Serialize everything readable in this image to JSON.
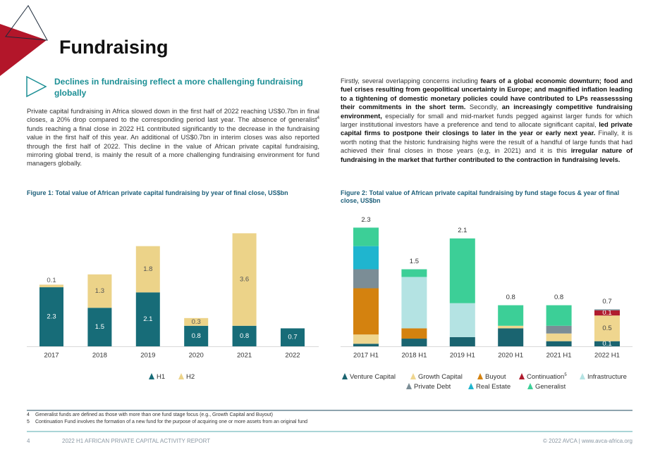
{
  "header": {
    "title": "Fundraising"
  },
  "section": {
    "heading": "Declines in fundraising reflect a more challenging fundraising globally",
    "left_paragraph": [
      {
        "text": "Private capital fundraising in Africa slowed down in the first half of 2022 reaching US$0.7bn in final closes, a 20% drop compared to the corresponding period last year. The absence of generalist",
        "style": "normal"
      },
      {
        "text": "4",
        "style": "sup"
      },
      {
        "text": " funds reaching a final close in 2022 H1 contributed significantly to the decrease in the fundraising value in the first half of this year. An additional of US$0.7bn in interim closes was also reported through the first half of 2022. This decline in the value of African private capital fundraising, mirroring global trend, is mainly the result of a more challenging fundraising environment for fund managers globally.",
        "style": "normal"
      }
    ],
    "right_paragraph": [
      {
        "text": "Firstly, several overlapping concerns including ",
        "style": "normal"
      },
      {
        "text": "fears of a global economic downturn; food and fuel crises resulting from geopolitical uncertainty in Europe; and magnified inflation leading to a tightening of domestic monetary policies could have contributed to LPs reassesssing their commitments in the short term.",
        "style": "bold"
      },
      {
        "text": " Secondly, ",
        "style": "normal"
      },
      {
        "text": "an increasingly competitive fundraising environment,",
        "style": "bold"
      },
      {
        "text": " especially for small and mid-market funds pegged against larger funds for which larger institutional investors have a preference and tend to allocate significant capital, ",
        "style": "normal"
      },
      {
        "text": "led private capital firms to postpone their closings to later in the year or early next year.",
        "style": "bold"
      },
      {
        "text": " Finally, it is worth noting that the historic fundraising highs were the result of a handful of large funds that had achieved their final closes in those years (e.g, in 2021) and it is this ",
        "style": "normal"
      },
      {
        "text": "irregular nature of fundraising in the market that further contributed to the contraction in fundraising levels.",
        "style": "bold"
      }
    ]
  },
  "chart_data": [
    {
      "type": "stacked_bar",
      "title": "Figure 1: Total value of African private capital fundraising by year of final close, US$bn",
      "categories": [
        "2017",
        "2018",
        "2019",
        "2020",
        "2021",
        "2022"
      ],
      "data_labels": true,
      "series": [
        {
          "name": "H1",
          "color": "#176c78",
          "label_color": "#ffffff",
          "values": [
            2.3,
            1.5,
            2.1,
            0.8,
            0.8,
            0.7
          ]
        },
        {
          "name": "H2",
          "color": "#ecd389",
          "label_color": "#555555",
          "values": [
            0.1,
            1.3,
            1.8,
            0.3,
            3.6,
            null
          ]
        }
      ],
      "legend": "bottom"
    },
    {
      "type": "stacked_bar",
      "title": "Figure 2: Total value of African private capital fundraising by fund stage focus & year of final close, US$bn",
      "categories": [
        "2017 H1",
        "2018 H1",
        "2019 H1",
        "2020 H1",
        "2021 H1",
        "2022 H1"
      ],
      "totals": [
        2.3,
        1.5,
        2.1,
        0.8,
        0.8,
        0.7
      ],
      "series": [
        {
          "name": "Venture Capital",
          "color": "#1a6470",
          "label_color": "#ffffff",
          "values": [
            0.05,
            0.15,
            0.18,
            0.35,
            0.1,
            0.1
          ],
          "value_labels": [
            null,
            null,
            null,
            null,
            null,
            "0.1"
          ]
        },
        {
          "name": "Growth Capital",
          "color": "#efd68f",
          "label_color": "#444444",
          "values": [
            0.18,
            null,
            null,
            0.05,
            0.15,
            0.5
          ],
          "value_labels": [
            null,
            null,
            null,
            null,
            null,
            "0.5"
          ]
        },
        {
          "name": "Buyout",
          "color": "#d4820f",
          "label_color": "#ffffff",
          "values": [
            0.9,
            0.2,
            null,
            null,
            null,
            null
          ]
        },
        {
          "name": "Continuation",
          "note": "5",
          "color": "#b01c2e",
          "label_color": "#ffffff",
          "values": [
            null,
            null,
            null,
            null,
            null,
            0.1
          ],
          "value_labels": [
            null,
            null,
            null,
            null,
            null,
            "0.1"
          ]
        },
        {
          "name": "Private Debt",
          "color": "#7b8d96",
          "label_color": "#ffffff",
          "values": [
            0.37,
            null,
            null,
            null,
            0.15,
            0.02
          ]
        },
        {
          "name": "Real Estate",
          "color": "#1fb5cf",
          "label_color": "#ffffff",
          "values": [
            0.45,
            null,
            null,
            null,
            null,
            null
          ]
        },
        {
          "name": "Infrastructure",
          "color": "#b4e3e3",
          "label_color": "#444444",
          "values": [
            null,
            1.0,
            0.66,
            null,
            null,
            null
          ]
        },
        {
          "name": "Generalist",
          "color": "#3ccf97",
          "label_color": "#ffffff",
          "values": [
            0.36,
            0.15,
            1.26,
            0.4,
            0.4,
            null
          ]
        }
      ],
      "legend": "bottom"
    }
  ],
  "footnotes": [
    {
      "number": "4",
      "text": "Generalist funds are defined as those with more than one fund stage focus (e.g., Growth Capital and Buyout)"
    },
    {
      "number": "5",
      "text": "Continuation Fund involves the formation of a new fund for the purpose of acquiring one or more assets from an original fund"
    }
  ],
  "footer": {
    "page": "4",
    "report": "2022 H1 AFRICAN PRIVATE CAPITAL ACTIVITY REPORT",
    "copyright": "© 2022 AVCA | www.avca-africa.org"
  }
}
